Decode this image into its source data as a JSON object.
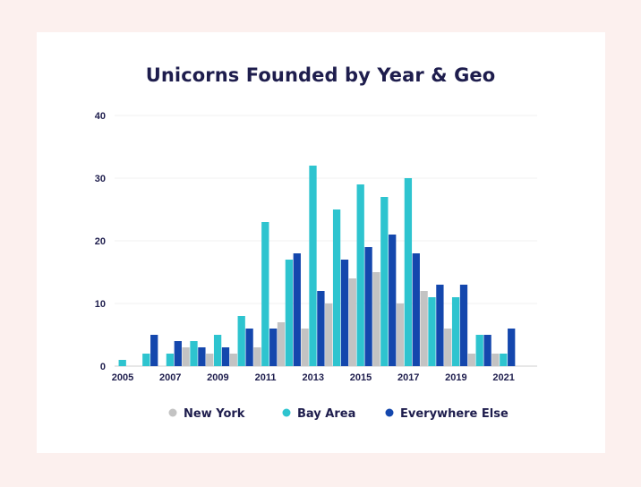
{
  "chart_data": {
    "type": "bar",
    "title": "Unicorns Founded by Year & Geo",
    "xlabel": "",
    "ylabel": "",
    "ylim": [
      0,
      40
    ],
    "yticks": [
      0,
      10,
      20,
      30,
      40
    ],
    "categories": [
      "2005",
      "2006",
      "2007",
      "2008",
      "2009",
      "2010",
      "2011",
      "2012",
      "2013",
      "2014",
      "2015",
      "2016",
      "2017",
      "2018",
      "2019",
      "2020",
      "2021"
    ],
    "xtick_labels": [
      "2005",
      "2007",
      "2009",
      "2011",
      "2013",
      "2015",
      "2017",
      "2019",
      "2021"
    ],
    "grid": true,
    "legend_position": "bottom",
    "series": [
      {
        "name": "New York",
        "color": "#c3c3c3",
        "values": [
          0,
          0,
          0,
          3,
          2,
          2,
          3,
          7,
          6,
          10,
          14,
          15,
          10,
          12,
          6,
          2,
          2
        ]
      },
      {
        "name": "Bay Area",
        "color": "#2ec4cf",
        "values": [
          1,
          2,
          2,
          4,
          5,
          8,
          23,
          17,
          32,
          25,
          29,
          27,
          30,
          11,
          11,
          5,
          2
        ]
      },
      {
        "name": "Everywhere Else",
        "color": "#1447ad",
        "values": [
          0,
          5,
          4,
          3,
          3,
          6,
          6,
          18,
          12,
          17,
          19,
          21,
          18,
          13,
          13,
          5,
          6
        ]
      }
    ]
  }
}
